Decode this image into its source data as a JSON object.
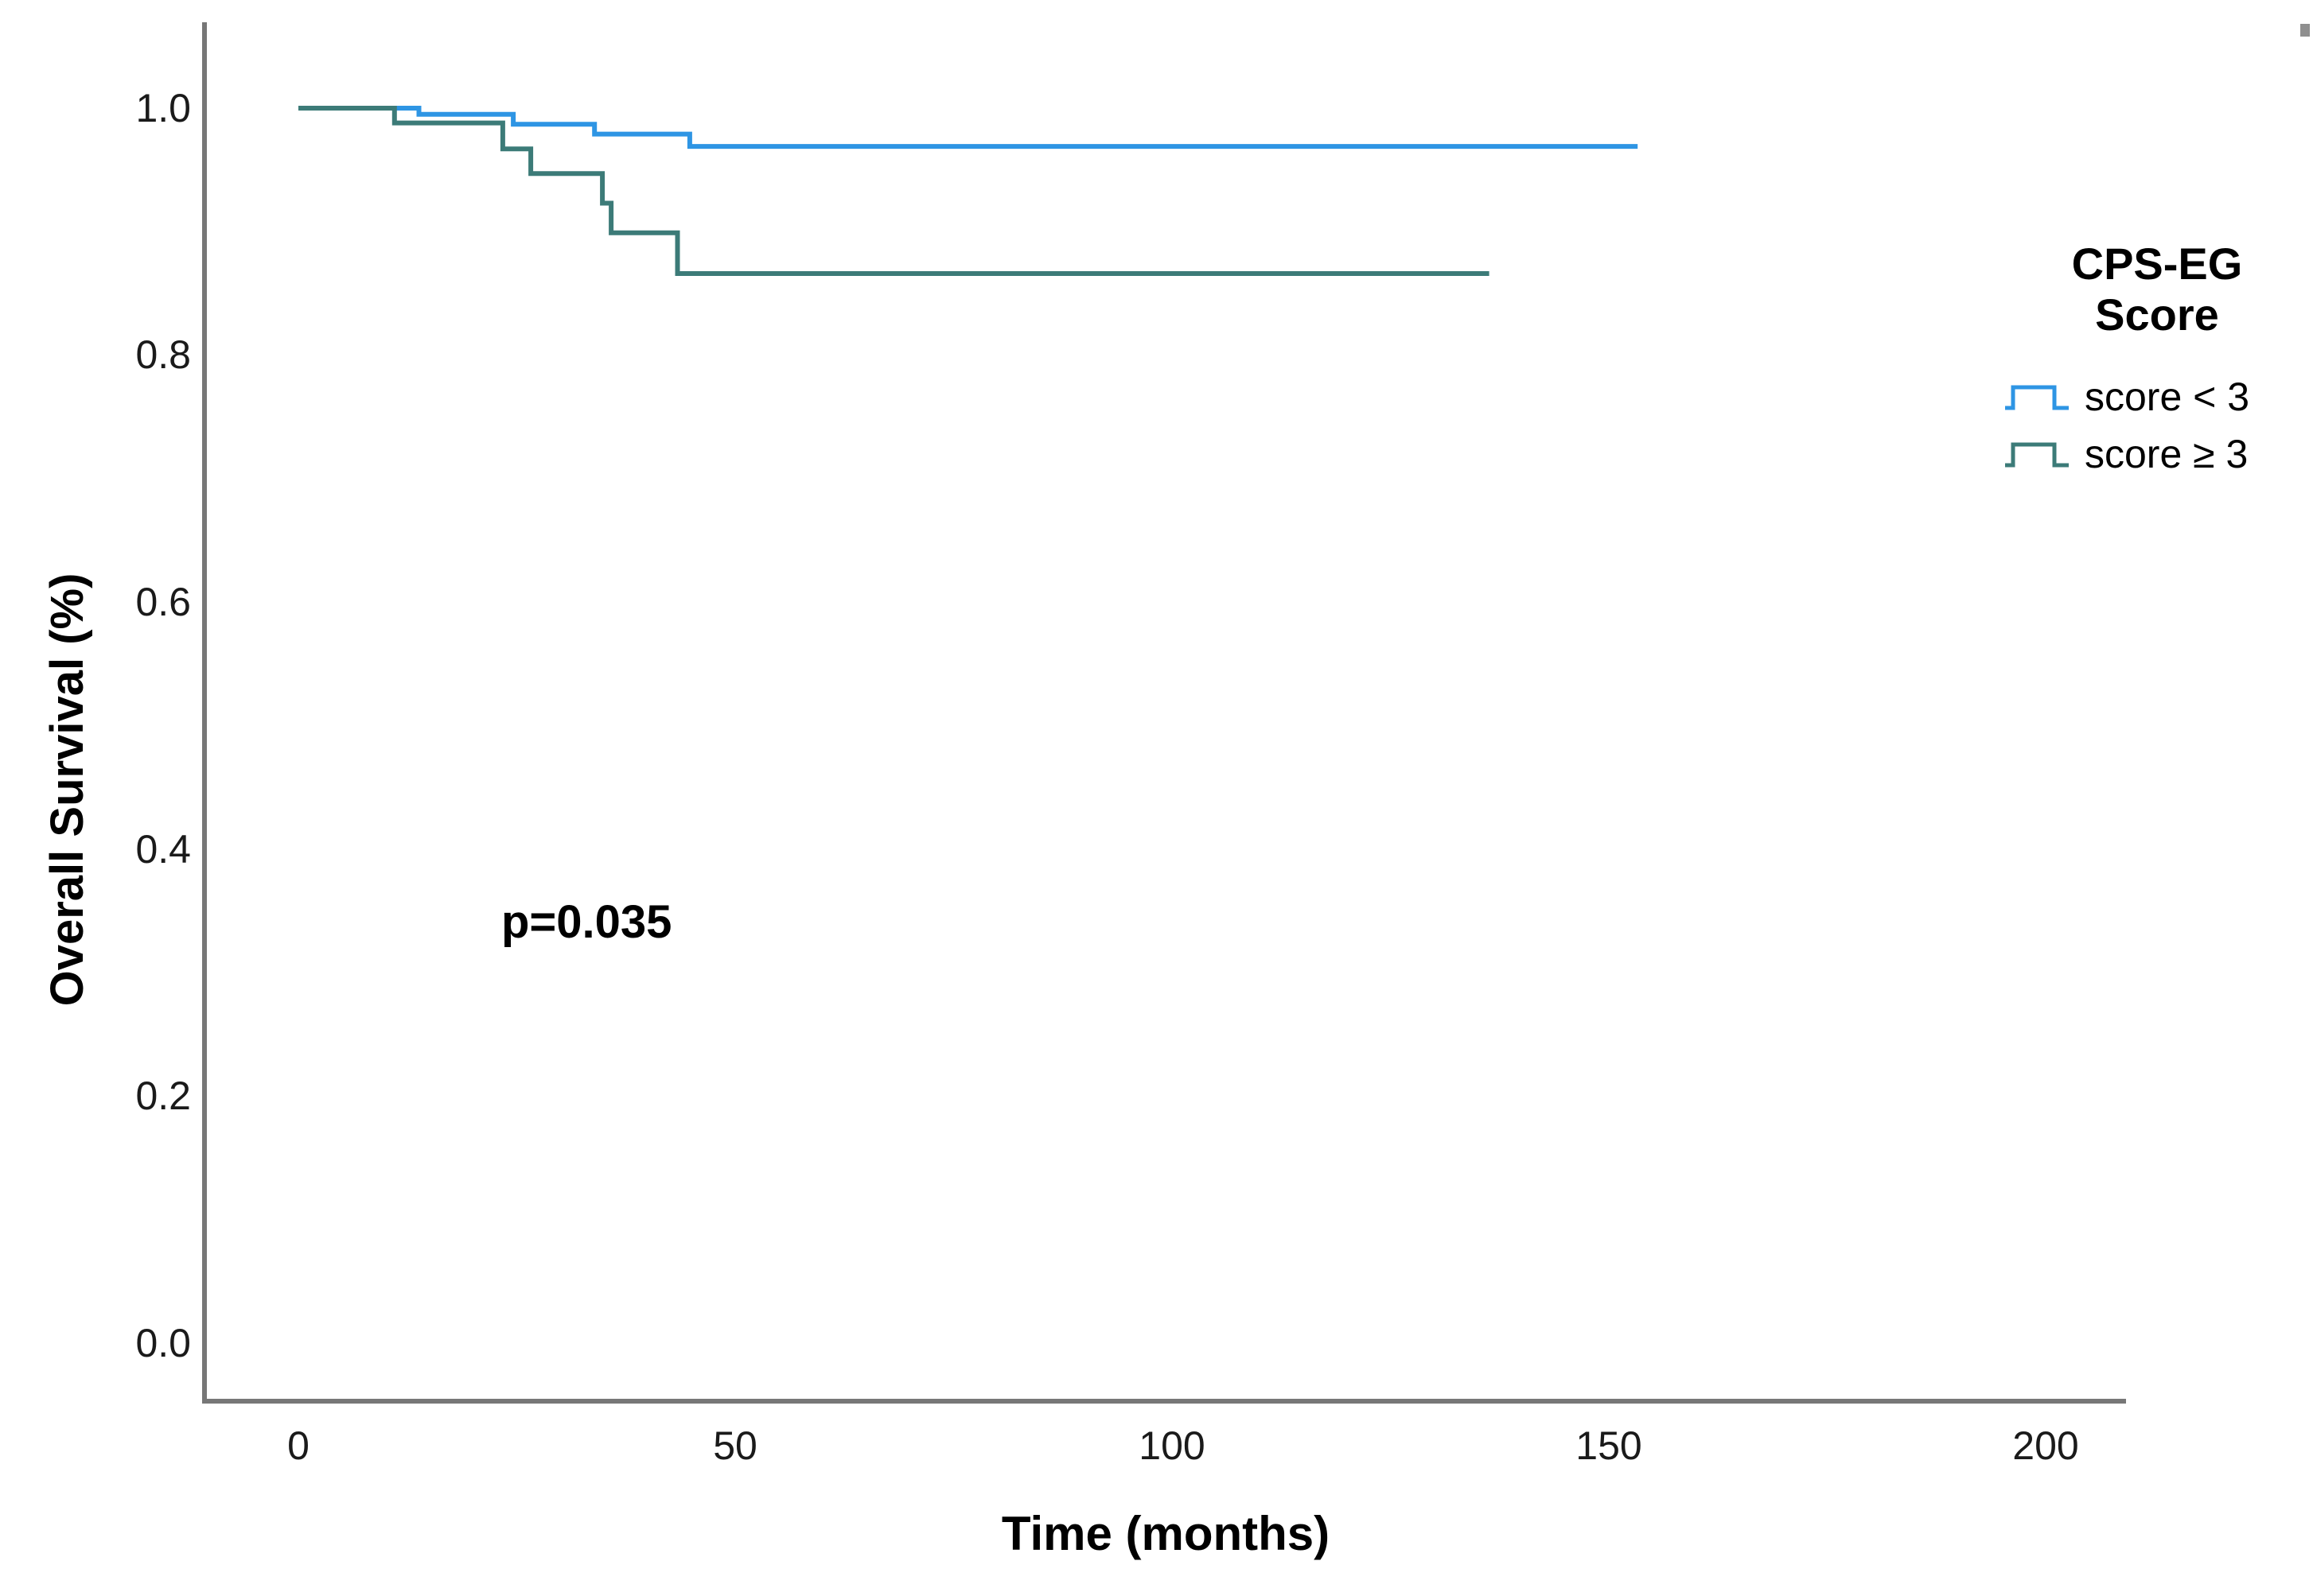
{
  "figure": {
    "y_axis": {
      "title": "Overall Survival (%)",
      "ticks": [
        {
          "label": "1.0",
          "value": 1.0
        },
        {
          "label": "0.8",
          "value": 0.8
        },
        {
          "label": "0.6",
          "value": 0.6
        },
        {
          "label": "0.4",
          "value": 0.4
        },
        {
          "label": "0.2",
          "value": 0.2
        },
        {
          "label": "0.0",
          "value": 0.0
        }
      ]
    },
    "x_axis": {
      "title": "Time (months)",
      "ticks": [
        {
          "label": "0",
          "value": 0
        },
        {
          "label": "50",
          "value": 50
        },
        {
          "label": "100",
          "value": 100
        },
        {
          "label": "150",
          "value": 150
        },
        {
          "label": "200",
          "value": 200
        }
      ]
    },
    "annotation": {
      "p_value": "p=0.035"
    },
    "legend": {
      "title_line1": "CPS-EG",
      "title_line2": "Score",
      "entries": [
        {
          "label": "score < 3",
          "color": "#2e95e4"
        },
        {
          "label": "score ≥ 3",
          "color": "#3c7b78"
        }
      ]
    },
    "colors": {
      "axis_line": "#777777",
      "curve_score_lt_3": "#2e95e4",
      "curve_score_ge_3": "#3c7b78"
    }
  },
  "chart_data": {
    "type": "line",
    "subtype": "kaplan-meier-step",
    "title": "",
    "xlabel": "Time (months)",
    "ylabel": "Overall Survival (%)",
    "xlim": [
      0,
      200
    ],
    "ylim": [
      0.0,
      1.05
    ],
    "x_ticks": [
      0,
      50,
      100,
      150,
      200
    ],
    "y_ticks": [
      0.0,
      0.2,
      0.4,
      0.6,
      0.8,
      1.0
    ],
    "grid": false,
    "legend_position": "right",
    "legend_title": "CPS-EG Score",
    "annotations": [
      {
        "text": "p=0.035",
        "x": 35,
        "y": 0.36
      }
    ],
    "series": [
      {
        "name": "score < 3",
        "color": "#2e95e4",
        "steps": [
          [
            0,
            1.0
          ],
          [
            13.8,
            1.0
          ],
          [
            13.8,
            0.995
          ],
          [
            24.6,
            0.995
          ],
          [
            24.6,
            0.987
          ],
          [
            33.9,
            0.987
          ],
          [
            33.9,
            0.979
          ],
          [
            44.8,
            0.979
          ],
          [
            44.8,
            0.969
          ],
          [
            153.3,
            0.969
          ]
        ]
      },
      {
        "name": "score ≥ 3",
        "color": "#3c7b78",
        "steps": [
          [
            0,
            1.0
          ],
          [
            11.0,
            1.0
          ],
          [
            11.0,
            0.988
          ],
          [
            23.4,
            0.988
          ],
          [
            23.4,
            0.967
          ],
          [
            26.6,
            0.967
          ],
          [
            26.6,
            0.947
          ],
          [
            34.8,
            0.947
          ],
          [
            34.8,
            0.923
          ],
          [
            35.8,
            0.923
          ],
          [
            35.8,
            0.899
          ],
          [
            43.4,
            0.899
          ],
          [
            43.4,
            0.866
          ],
          [
            136.3,
            0.866
          ]
        ]
      }
    ]
  }
}
